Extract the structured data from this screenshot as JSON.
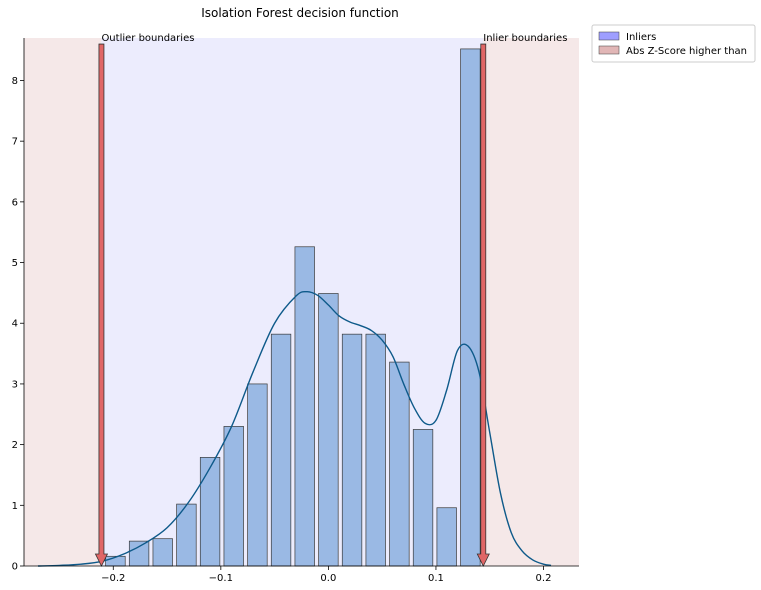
{
  "chart_data": {
    "type": "bar",
    "title": "Isolation Forest decision function",
    "xlabel": "",
    "ylabel": "",
    "xlim": [
      -0.283,
      0.233
    ],
    "ylim": [
      0,
      8.7
    ],
    "grid": false,
    "legend_placement": "outside-top-right",
    "xticks": [
      -0.2,
      -0.1,
      0.0,
      0.1,
      0.2
    ],
    "xtick_labels": [
      "−0.2",
      "−0.1",
      "0.0",
      "0.1",
      "0.2"
    ],
    "yticks": [
      0,
      1,
      2,
      3,
      4,
      5,
      6,
      7,
      8
    ],
    "ytick_labels": [
      "0",
      "1",
      "2",
      "3",
      "4",
      "5",
      "6",
      "7",
      "8"
    ],
    "regions": [
      {
        "name": "Abs Z-Score higher than",
        "x": [
          -0.283,
          -0.211
        ],
        "color": "#f5e8e8"
      },
      {
        "name": "Inliers",
        "x": [
          -0.211,
          0.144
        ],
        "color": "#ececfd"
      },
      {
        "name": "Abs Z-Score higher than",
        "x": [
          0.144,
          0.233
        ],
        "color": "#f5e8e8"
      }
    ],
    "bin_width": 0.0218,
    "bins": [
      {
        "center": -0.198,
        "value": 0.16
      },
      {
        "center": -0.176,
        "value": 0.41
      },
      {
        "center": -0.154,
        "value": 0.45
      },
      {
        "center": -0.132,
        "value": 1.02
      },
      {
        "center": -0.11,
        "value": 1.79
      },
      {
        "center": -0.088,
        "value": 2.3
      },
      {
        "center": -0.066,
        "value": 3.0
      },
      {
        "center": -0.044,
        "value": 3.82
      },
      {
        "center": -0.022,
        "value": 5.26
      },
      {
        "center": 0.0,
        "value": 4.49
      },
      {
        "center": 0.022,
        "value": 3.82
      },
      {
        "center": 0.044,
        "value": 3.82
      },
      {
        "center": 0.066,
        "value": 3.36
      },
      {
        "center": 0.088,
        "value": 2.25
      },
      {
        "center": 0.11,
        "value": 0.96
      },
      {
        "center": 0.132,
        "value": 8.52
      }
    ],
    "kde": {
      "x": [
        -0.27,
        -0.25,
        -0.23,
        -0.21,
        -0.19,
        -0.17,
        -0.15,
        -0.13,
        -0.11,
        -0.09,
        -0.07,
        -0.05,
        -0.03,
        -0.02,
        -0.01,
        0.0,
        0.01,
        0.02,
        0.03,
        0.04,
        0.05,
        0.06,
        0.07,
        0.08,
        0.09,
        0.1,
        0.11,
        0.12,
        0.13,
        0.14,
        0.15,
        0.16,
        0.17,
        0.18,
        0.19,
        0.2,
        0.207
      ],
      "y": [
        0.0,
        0.01,
        0.03,
        0.08,
        0.2,
        0.38,
        0.63,
        1.05,
        1.62,
        2.3,
        3.2,
        4.0,
        4.45,
        4.52,
        4.46,
        4.3,
        4.12,
        4.02,
        3.96,
        3.88,
        3.72,
        3.45,
        3.0,
        2.6,
        2.35,
        2.4,
        2.9,
        3.55,
        3.62,
        3.2,
        2.2,
        1.2,
        0.55,
        0.25,
        0.1,
        0.03,
        0.01
      ]
    },
    "kde_color": "#0e5a8a",
    "bar_color": "#9ab9e4",
    "annotations": [
      {
        "text": "Outlier boundaries",
        "x": -0.211,
        "arrow_top": 8.6,
        "arrow_bottom": 0
      },
      {
        "text": "Inlier boundaries",
        "x": 0.144,
        "arrow_top": 8.6,
        "arrow_bottom": 0
      }
    ],
    "arrow_color": "#e06666",
    "legend": [
      {
        "label": "Inliers",
        "color": "#9999ff"
      },
      {
        "label": "Abs Z-Score higher than",
        "color": "#e0b3b3"
      }
    ]
  }
}
